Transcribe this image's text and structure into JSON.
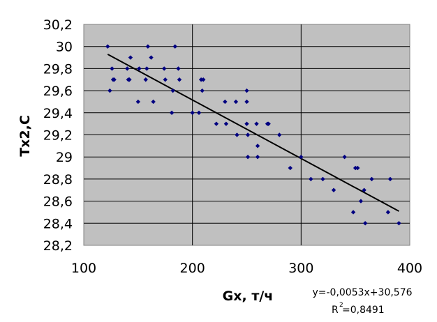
{
  "chart_data": {
    "type": "scatter",
    "xlabel": "Gx, т/ч",
    "ylabel": "Tx2,C",
    "xlim": [
      100,
      400
    ],
    "ylim": [
      28.2,
      30.2
    ],
    "x_ticks": [
      "100",
      "200",
      "300",
      "400"
    ],
    "y_ticks": [
      "28,2",
      "28,4",
      "28,6",
      "28,8",
      "29",
      "29,2",
      "29,4",
      "29,6",
      "29,8",
      "30",
      "30,2"
    ],
    "grid": true,
    "plot_background": "#c0c0c0",
    "marker_color": "#000080",
    "trendline_color": "#000000",
    "series": [
      {
        "points": [
          [
            122,
            30.0
          ],
          [
            124,
            29.6
          ],
          [
            126,
            29.8
          ],
          [
            127,
            29.7
          ],
          [
            128,
            29.7
          ],
          [
            140,
            29.8
          ],
          [
            141,
            29.7
          ],
          [
            142,
            29.7
          ],
          [
            143,
            29.9
          ],
          [
            150,
            29.5
          ],
          [
            151,
            29.8
          ],
          [
            157,
            29.7
          ],
          [
            158,
            29.8
          ],
          [
            159,
            30.0
          ],
          [
            162,
            29.9
          ],
          [
            164,
            29.5
          ],
          [
            174,
            29.8
          ],
          [
            175,
            29.7
          ],
          [
            181,
            29.4
          ],
          [
            182,
            29.6
          ],
          [
            184,
            30.0
          ],
          [
            187,
            29.8
          ],
          [
            188,
            29.7
          ],
          [
            200,
            29.4
          ],
          [
            206,
            29.4
          ],
          [
            208,
            29.7
          ],
          [
            209,
            29.6
          ],
          [
            210,
            29.7
          ],
          [
            222,
            29.3
          ],
          [
            230,
            29.5
          ],
          [
            231,
            29.3
          ],
          [
            240,
            29.5
          ],
          [
            241,
            29.2
          ],
          [
            250,
            29.6
          ],
          [
            250,
            29.5
          ],
          [
            250,
            29.3
          ],
          [
            251,
            29.2
          ],
          [
            251,
            29.0
          ],
          [
            259,
            29.3
          ],
          [
            260,
            29.1
          ],
          [
            260,
            29.0
          ],
          [
            269,
            29.3
          ],
          [
            270,
            29.3
          ],
          [
            280,
            29.2
          ],
          [
            290,
            28.9
          ],
          [
            300,
            29.0
          ],
          [
            309,
            28.8
          ],
          [
            320,
            28.8
          ],
          [
            330,
            28.7
          ],
          [
            340,
            29.0
          ],
          [
            348,
            28.5
          ],
          [
            350,
            28.9
          ],
          [
            352,
            28.9
          ],
          [
            355,
            28.6
          ],
          [
            358,
            28.7
          ],
          [
            359,
            28.4
          ],
          [
            365,
            28.8
          ],
          [
            380,
            28.5
          ],
          [
            382,
            28.8
          ],
          [
            390,
            28.4
          ]
        ]
      }
    ],
    "trendline": {
      "slope": -0.0053,
      "intercept": 30.576,
      "x_range": [
        122,
        390
      ]
    },
    "annotations": {
      "equation": "y=-0,0053x+30,576",
      "r2_label": "R",
      "r2_sup": "2",
      "r2_value": " =0,8491"
    }
  }
}
